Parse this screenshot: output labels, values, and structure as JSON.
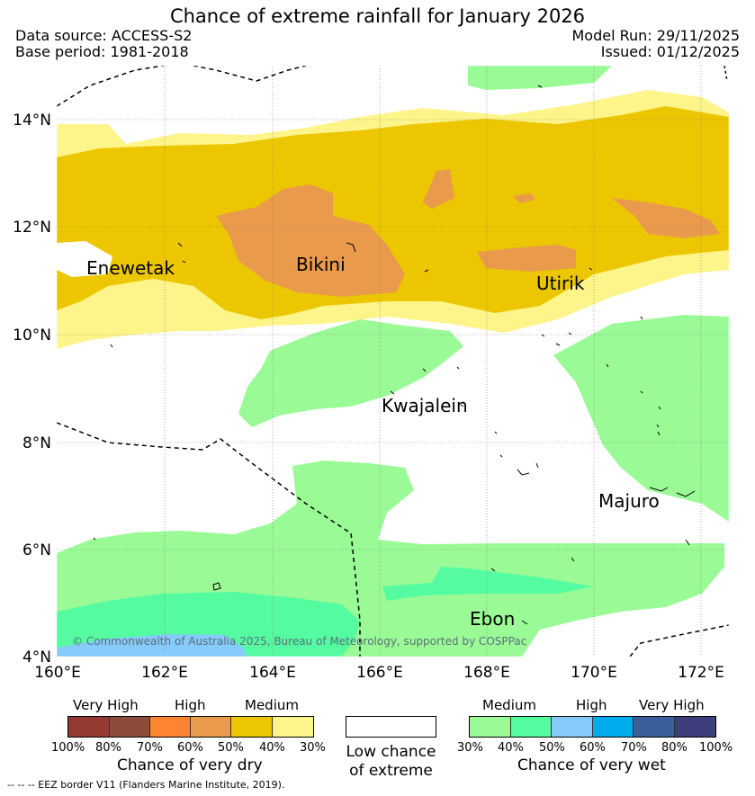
{
  "title": "Chance of extreme rainfall for January 2026",
  "header": {
    "data_source": "Data source: ACCESS-S2",
    "base_period": "Base period: 1981-2018",
    "model_run": "Model Run: 29/11/2025",
    "issued": "Issued: 01/12/2025"
  },
  "map": {
    "lat_labels": [
      "14°N",
      "12°N",
      "10°N",
      "8°N",
      "6°N",
      "4°N"
    ],
    "lon_labels": [
      "160°E",
      "162°E",
      "164°E",
      "166°E",
      "168°E",
      "170°E",
      "172°E"
    ],
    "places": [
      "Enewetak",
      "Bikini",
      "Utirik",
      "Kwajalein",
      "Majuro",
      "Ebon"
    ],
    "copyright": "© Commonwealth of Australia 2025, Bureau of Meteorology, supported by COSPPac"
  },
  "legend": {
    "dry": {
      "categories": [
        "Very High",
        "High",
        "Medium"
      ],
      "ticks": [
        "100%",
        "80%",
        "70%",
        "60%",
        "50%",
        "40%",
        "30%"
      ],
      "colors": [
        "#933b31",
        "#8b4c3a",
        "#fd8430",
        "#e99a4b",
        "#ecc700",
        "#fdf48a"
      ],
      "title": "Chance of very dry"
    },
    "low": {
      "line1": "Low chance",
      "line2": "of extreme"
    },
    "wet": {
      "categories": [
        "Medium",
        "High",
        "Very High"
      ],
      "ticks": [
        "30%",
        "40%",
        "50%",
        "60%",
        "70%",
        "80%",
        "100%"
      ],
      "colors": [
        "#9afb96",
        "#54fba0",
        "#86cbfb",
        "#00adec",
        "#3a5f9c",
        "#3d3d7b"
      ],
      "title": "Chance of very wet"
    },
    "eez_note": "-- -- -- EEZ border V11 (Flanders Marine Institute, 2019)."
  }
}
